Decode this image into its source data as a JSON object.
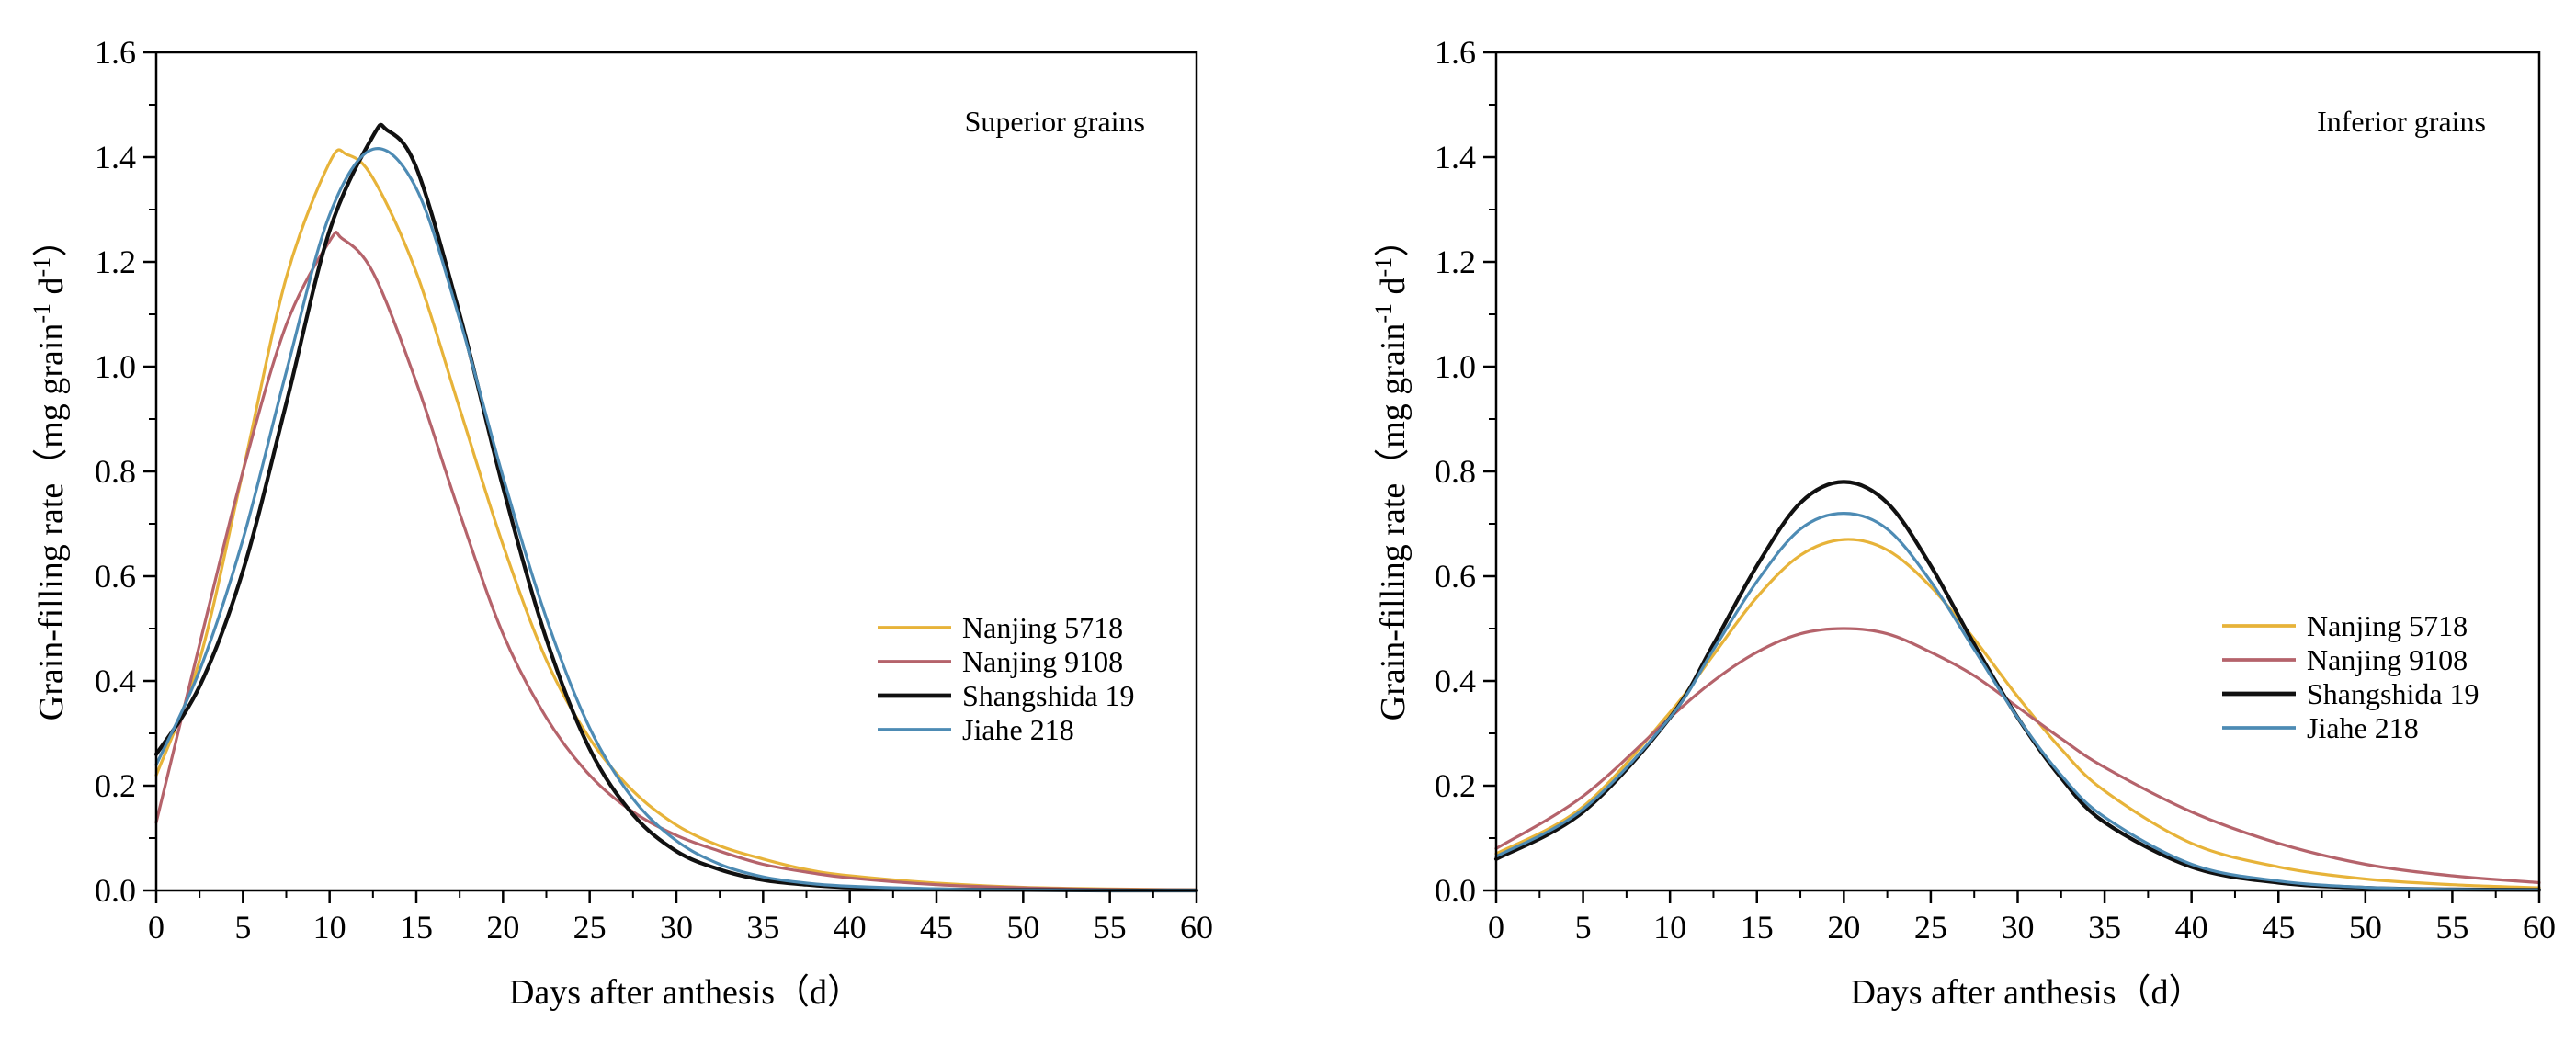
{
  "chart_data": [
    {
      "type": "line",
      "annotation": "Superior grains",
      "xlabel": "Days after anthesis（d）",
      "ylabel_main": "Grain-filling rate（mg grain",
      "ylabel_sup1": "-1",
      "ylabel_mid": " d",
      "ylabel_sup2": "-1",
      "ylabel_end": "）",
      "xlim": [
        0,
        60
      ],
      "ylim": [
        0,
        1.6
      ],
      "xticks": [
        0,
        5,
        10,
        15,
        20,
        25,
        30,
        35,
        40,
        45,
        50,
        55,
        60
      ],
      "xtick_labels": [
        "0",
        "5",
        "10",
        "15",
        "20",
        "25",
        "30",
        "35",
        "40",
        "45",
        "50",
        "55",
        "60"
      ],
      "yticks": [
        0,
        0.2,
        0.4,
        0.6,
        0.8,
        1.0,
        1.2,
        1.4,
        1.6
      ],
      "ytick_labels": [
        "0.0",
        "0.2",
        "0.4",
        "0.6",
        "0.8",
        "1.0",
        "1.2",
        "1.4",
        "1.6"
      ],
      "legend_position": "center-right",
      "series": [
        {
          "name": "Nanjing 5718",
          "color": "#E7B339",
          "width": 3.2,
          "x": [
            0,
            2.5,
            5,
            7.5,
            10,
            11,
            12.5,
            15,
            17.5,
            20,
            22.5,
            25,
            27.5,
            30,
            32.5,
            35,
            37.5,
            40,
            45,
            50,
            55,
            60
          ],
          "y": [
            0.22,
            0.44,
            0.8,
            1.17,
            1.39,
            1.405,
            1.36,
            1.18,
            0.92,
            0.66,
            0.44,
            0.29,
            0.19,
            0.125,
            0.085,
            0.06,
            0.04,
            0.028,
            0.014,
            0.006,
            0.003,
            0.001
          ]
        },
        {
          "name": "Nanjing 9108",
          "color": "#B5636B",
          "width": 3.2,
          "x": [
            0,
            2.5,
            5,
            7.5,
            10,
            10.7,
            12.5,
            15,
            17.5,
            20,
            22.5,
            25,
            27.5,
            30,
            32.5,
            35,
            37.5,
            40,
            45,
            50,
            55,
            60
          ],
          "y": [
            0.13,
            0.47,
            0.8,
            1.08,
            1.24,
            1.245,
            1.18,
            0.97,
            0.72,
            0.49,
            0.33,
            0.22,
            0.15,
            0.105,
            0.075,
            0.05,
            0.035,
            0.024,
            0.011,
            0.005,
            0.002,
            0.001
          ]
        },
        {
          "name": "Shangshida 19",
          "color": "#111111",
          "width": 4.2,
          "x": [
            0,
            2.5,
            5,
            7.5,
            10,
            12.5,
            13.3,
            15,
            17.5,
            20,
            22.5,
            25,
            27.5,
            30,
            32.5,
            35,
            37.5,
            40,
            45,
            50,
            55,
            60
          ],
          "y": [
            0.26,
            0.39,
            0.61,
            0.93,
            1.26,
            1.44,
            1.452,
            1.38,
            1.1,
            0.77,
            0.48,
            0.27,
            0.145,
            0.075,
            0.04,
            0.02,
            0.011,
            0.006,
            0.002,
            0.001,
            0,
            0
          ]
        },
        {
          "name": "Jiahe 218",
          "color": "#4D8BB4",
          "width": 3.2,
          "x": [
            0,
            2.5,
            5,
            7.5,
            10,
            12.5,
            15,
            17.5,
            20,
            22.5,
            25,
            27.5,
            30,
            32.5,
            35,
            37.5,
            40,
            45,
            50,
            55,
            60
          ],
          "y": [
            0.24,
            0.42,
            0.67,
            0.99,
            1.29,
            1.415,
            1.34,
            1.09,
            0.79,
            0.52,
            0.31,
            0.175,
            0.095,
            0.05,
            0.026,
            0.014,
            0.008,
            0.003,
            0.001,
            0,
            0
          ]
        }
      ]
    },
    {
      "type": "line",
      "annotation": "Inferior grains",
      "xlabel": "Days after anthesis（d）",
      "ylabel_main": "Grain-filling rate（mg grain",
      "ylabel_sup1": "-1",
      "ylabel_mid": " d",
      "ylabel_sup2": "-1",
      "ylabel_end": "）",
      "xlim": [
        0,
        60
      ],
      "ylim": [
        0,
        1.6
      ],
      "xticks": [
        0,
        5,
        10,
        15,
        20,
        25,
        30,
        35,
        40,
        45,
        50,
        55,
        60
      ],
      "xtick_labels": [
        "0",
        "5",
        "10",
        "15",
        "20",
        "25",
        "30",
        "35",
        "40",
        "45",
        "50",
        "55",
        "60"
      ],
      "yticks": [
        0,
        0.2,
        0.4,
        0.6,
        0.8,
        1.0,
        1.2,
        1.4,
        1.6
      ],
      "ytick_labels": [
        "0.0",
        "0.2",
        "0.4",
        "0.6",
        "0.8",
        "1.0",
        "1.2",
        "1.4",
        "1.6"
      ],
      "legend_position": "center-right",
      "series": [
        {
          "name": "Nanjing 5718",
          "color": "#E7B339",
          "width": 3.2,
          "x": [
            0,
            5,
            10,
            12.5,
            15,
            17.5,
            20,
            22.5,
            25,
            27.5,
            30,
            32.5,
            35,
            40,
            45,
            50,
            55,
            60
          ],
          "y": [
            0.07,
            0.16,
            0.34,
            0.45,
            0.56,
            0.64,
            0.67,
            0.65,
            0.58,
            0.48,
            0.37,
            0.27,
            0.19,
            0.09,
            0.045,
            0.022,
            0.011,
            0.005
          ]
        },
        {
          "name": "Nanjing 9108",
          "color": "#B5636B",
          "width": 3.2,
          "x": [
            0,
            5,
            10,
            12.5,
            15,
            17.5,
            20,
            22.5,
            25,
            27.5,
            30,
            32.5,
            35,
            40,
            45,
            50,
            55,
            60
          ],
          "y": [
            0.08,
            0.18,
            0.33,
            0.4,
            0.455,
            0.49,
            0.5,
            0.49,
            0.455,
            0.41,
            0.35,
            0.29,
            0.235,
            0.15,
            0.09,
            0.05,
            0.028,
            0.015
          ]
        },
        {
          "name": "Shangshida 19",
          "color": "#111111",
          "width": 4.2,
          "x": [
            0,
            5,
            10,
            12.5,
            15,
            17.5,
            20,
            22.5,
            25,
            27.5,
            30,
            32.5,
            35,
            40,
            45,
            50,
            55,
            60
          ],
          "y": [
            0.06,
            0.15,
            0.33,
            0.47,
            0.62,
            0.74,
            0.78,
            0.74,
            0.62,
            0.47,
            0.33,
            0.215,
            0.13,
            0.045,
            0.015,
            0.005,
            0.002,
            0.001
          ]
        },
        {
          "name": "Jiahe 218",
          "color": "#4D8BB4",
          "width": 3.2,
          "x": [
            0,
            5,
            10,
            12.5,
            15,
            17.5,
            20,
            22.5,
            25,
            27.5,
            30,
            32.5,
            35,
            40,
            45,
            50,
            55,
            60
          ],
          "y": [
            0.065,
            0.155,
            0.33,
            0.46,
            0.59,
            0.69,
            0.72,
            0.69,
            0.59,
            0.46,
            0.33,
            0.22,
            0.14,
            0.05,
            0.018,
            0.006,
            0.002,
            0.001
          ]
        }
      ]
    }
  ]
}
